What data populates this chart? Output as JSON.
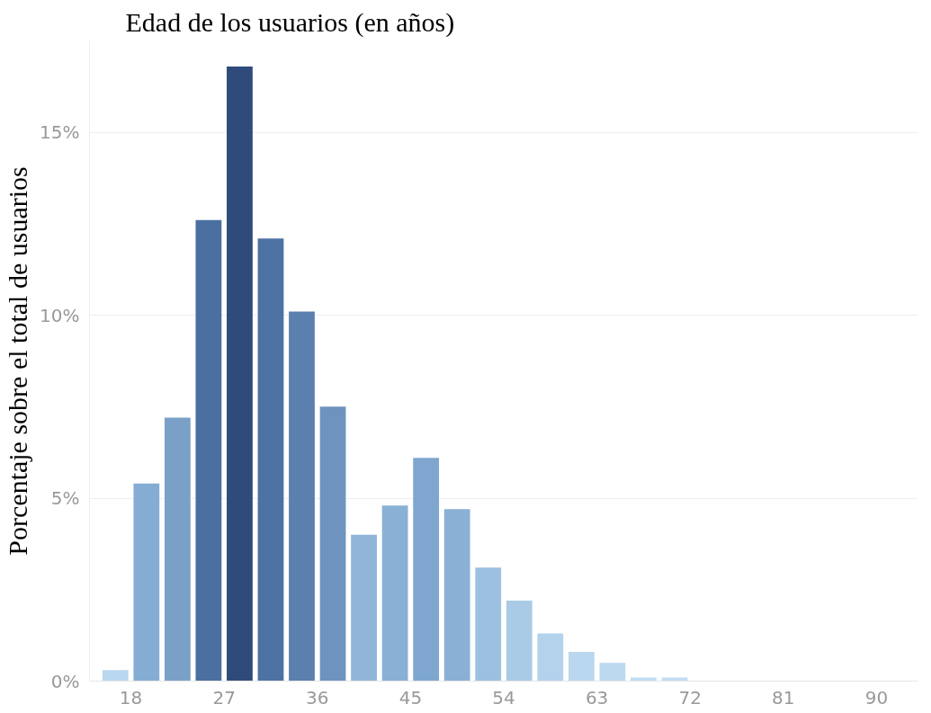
{
  "chart_data": {
    "type": "histogram",
    "title": "Edad de los usuarios (en años)",
    "ylabel": "Porcentaje sobre el total de usuarios",
    "bins": [
      15,
      18,
      21,
      24,
      27,
      30,
      33,
      36,
      39,
      42,
      45,
      48,
      51,
      54,
      57,
      60,
      63,
      66,
      69,
      72
    ],
    "values": [
      0.3,
      5.4,
      7.2,
      12.6,
      16.8,
      12.1,
      10.1,
      7.5,
      4.0,
      4.8,
      6.1,
      4.7,
      3.1,
      2.2,
      1.3,
      0.8,
      0.5,
      0.1,
      0.1
    ],
    "colors": [
      "#b9d7ef",
      "#85acd3",
      "#7aa0c8",
      "#4a6fa0",
      "#2f4b7c",
      "#4d72a3",
      "#5b80ad",
      "#6f93bf",
      "#90b5d9",
      "#8ab0d6",
      "#7fa6cf",
      "#8ab0d6",
      "#9cc0e0",
      "#a9cbe6",
      "#b3d2ec",
      "#b9d7ef",
      "#bcd9f0",
      "#c2ddf2",
      "#c2ddf2"
    ],
    "xlim": [
      14,
      94
    ],
    "xticks": [
      18,
      27,
      36,
      45,
      54,
      63,
      72,
      81,
      90
    ],
    "ylim": [
      0,
      17.5
    ],
    "yticks": [
      {
        "value": 0,
        "label": "0%"
      },
      {
        "value": 5,
        "label": "5%"
      },
      {
        "value": 10,
        "label": "10%"
      },
      {
        "value": 15,
        "label": "15%"
      }
    ],
    "grid": "y"
  }
}
